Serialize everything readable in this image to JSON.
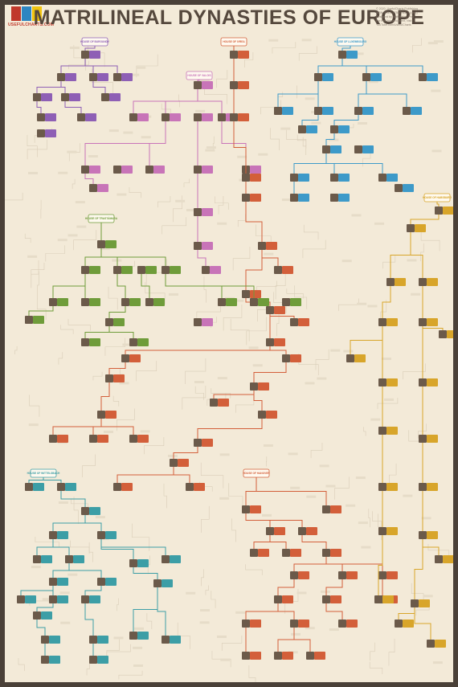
{
  "title": "MATRILINEAL DYNASTIES OF EUROPE",
  "logo": {
    "text": "USEFULCHARTS.COM",
    "colors": [
      "#c0392b",
      "#2e86c1",
      "#f1c40f"
    ]
  },
  "credits": [
    "© 2020, UsefulCharts Publishing",
    "ISBN: 978-1-7750776-2-7 (print)",
    "Designed by Matt Baker, PhD",
    "For free bonus content, visit:",
    "YouTube.com/UsefulCharts"
  ],
  "houses": [
    {
      "id": "burgundy",
      "label": "HOUSE OF BURGUNDY",
      "color": "#8e5fb5"
    },
    {
      "id": "ivrea",
      "label": "HOUSE OF IVREA",
      "color": "#d35f3a"
    },
    {
      "id": "luxembourg",
      "label": "HOUSE OF LUXEMBOURG",
      "color": "#3d9ac9"
    },
    {
      "id": "valois",
      "label": "HOUSE OF VALOIS",
      "color": "#c874b8"
    },
    {
      "id": "trastamara",
      "label": "HOUSE OF TRASTÁMARA",
      "color": "#6f9c3a"
    },
    {
      "id": "habsburg",
      "label": "HOUSE OF HABSBURG",
      "color": "#d8a52a"
    },
    {
      "id": "hanover",
      "label": "HOUSE OF HANOVER",
      "color": "#d35f3a"
    },
    {
      "id": "wittelsbach",
      "label": "HOUSE OF WITTELSBACH",
      "color": "#3c9ea6"
    }
  ],
  "colors": {
    "background": "#f3ead8",
    "frame": "#4a4038",
    "title": "#55483d",
    "faint_line": "#d9cdb8",
    "faint_text": "#a89a88",
    "portrait": "#6b5a4a"
  }
}
